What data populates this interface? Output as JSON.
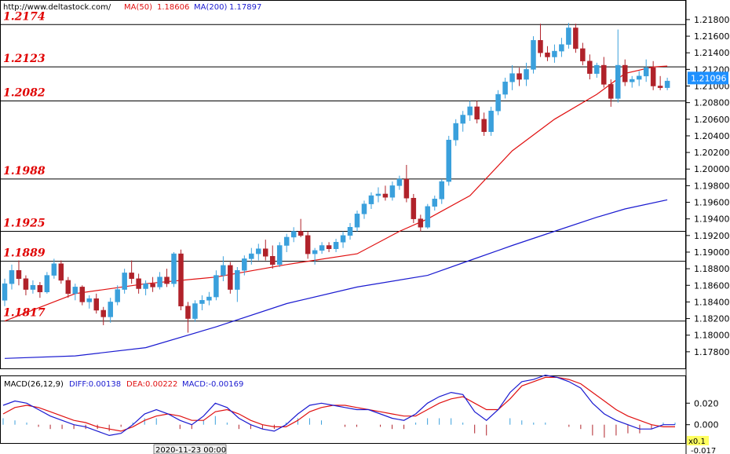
{
  "header": {
    "url": "http://www.deltastock.com/",
    "ma50_label": "MA(50)",
    "ma50_value": "1.18606",
    "ma200_label": "MA(200)",
    "ma200_value": "1.17897"
  },
  "macd_header": {
    "name": "MACD(26,12,9)",
    "diff": "DIFF:0.00138",
    "dea": "DEA:0.00222",
    "macd": "MACD:-0.00169"
  },
  "footer": {
    "date_label": "2020-11-23 00:00",
    "scale_label": "x0.1",
    "macd_min_label": "-0.017"
  },
  "colors": {
    "bull": "#3aa0dc",
    "bear": "#b0222a",
    "ma50": "#e01010",
    "ma200": "#1a1ad0",
    "levels": "#e00000",
    "price_tag_bg": "#1e90ff"
  },
  "chart_data": [
    {
      "type": "candlestick",
      "ylim": [
        1.176,
        1.2196
      ],
      "y_ticks": [
        "1.21800",
        "1.21600",
        "1.21400",
        "1.21200",
        "1.21000",
        "1.20800",
        "1.20600",
        "1.20400",
        "1.20200",
        "1.20000",
        "1.19800",
        "1.19600",
        "1.19400",
        "1.19200",
        "1.19000",
        "1.18800",
        "1.18600",
        "1.18400",
        "1.18200",
        "1.18000",
        "1.17800"
      ],
      "last_price": "1.21096",
      "levels": [
        "1.2174",
        "1.2123",
        "1.2082",
        "1.1988",
        "1.1925",
        "1.1889",
        "1.1817"
      ],
      "candles": [
        [
          1.1842,
          1.1868,
          1.1835,
          1.1862
        ],
        [
          1.1862,
          1.1885,
          1.1855,
          1.1878
        ],
        [
          1.1878,
          1.189,
          1.186,
          1.1868
        ],
        [
          1.1868,
          1.1872,
          1.1848,
          1.1855
        ],
        [
          1.1855,
          1.1866,
          1.185,
          1.186
        ],
        [
          1.186,
          1.1864,
          1.1845,
          1.1852
        ],
        [
          1.1852,
          1.1876,
          1.185,
          1.1872
        ],
        [
          1.1872,
          1.1892,
          1.1868,
          1.1886
        ],
        [
          1.1886,
          1.189,
          1.1862,
          1.1866
        ],
        [
          1.1866,
          1.187,
          1.1845,
          1.185
        ],
        [
          1.185,
          1.1862,
          1.1842,
          1.1858
        ],
        [
          1.1858,
          1.186,
          1.1836,
          1.184
        ],
        [
          1.184,
          1.1848,
          1.1832,
          1.1844
        ],
        [
          1.1844,
          1.185,
          1.1826,
          1.183
        ],
        [
          1.183,
          1.1834,
          1.1812,
          1.1822
        ],
        [
          1.1822,
          1.1845,
          1.1815,
          1.184
        ],
        [
          1.184,
          1.186,
          1.1836,
          1.1855
        ],
        [
          1.1855,
          1.188,
          1.185,
          1.1875
        ],
        [
          1.1875,
          1.189,
          1.1862,
          1.1868
        ],
        [
          1.1868,
          1.1874,
          1.185,
          1.1856
        ],
        [
          1.1856,
          1.1866,
          1.1848,
          1.1862
        ],
        [
          1.1862,
          1.187,
          1.1852,
          1.1858
        ],
        [
          1.1858,
          1.1876,
          1.1855,
          1.187
        ],
        [
          1.187,
          1.188,
          1.1858,
          1.1862
        ],
        [
          1.1862,
          1.19,
          1.1858,
          1.1898
        ],
        [
          1.1898,
          1.1903,
          1.183,
          1.1835
        ],
        [
          1.1835,
          1.184,
          1.1803,
          1.182
        ],
        [
          1.182,
          1.1842,
          1.1816,
          1.1838
        ],
        [
          1.1838,
          1.1848,
          1.183,
          1.1842
        ],
        [
          1.1842,
          1.1852,
          1.1836,
          1.1846
        ],
        [
          1.1846,
          1.1878,
          1.1842,
          1.1872
        ],
        [
          1.1872,
          1.1895,
          1.1865,
          1.1884
        ],
        [
          1.1884,
          1.1888,
          1.185,
          1.1855
        ],
        [
          1.1855,
          1.1882,
          1.184,
          1.1878
        ],
        [
          1.1878,
          1.1896,
          1.1872,
          1.1892
        ],
        [
          1.1892,
          1.1905,
          1.1885,
          1.1898
        ],
        [
          1.1898,
          1.191,
          1.189,
          1.1904
        ],
        [
          1.1904,
          1.1915,
          1.189,
          1.1895
        ],
        [
          1.1895,
          1.1908,
          1.188,
          1.1885
        ],
        [
          1.1885,
          1.1912,
          1.1882,
          1.1908
        ],
        [
          1.1908,
          1.1922,
          1.19,
          1.1918
        ],
        [
          1.1918,
          1.193,
          1.1912,
          1.1925
        ],
        [
          1.1925,
          1.194,
          1.1918,
          1.192
        ],
        [
          1.192,
          1.1925,
          1.1892,
          1.1898
        ],
        [
          1.1898,
          1.1905,
          1.1885,
          1.1902
        ],
        [
          1.1902,
          1.1912,
          1.1898,
          1.1908
        ],
        [
          1.1908,
          1.1912,
          1.19,
          1.1904
        ],
        [
          1.1904,
          1.1916,
          1.19,
          1.1912
        ],
        [
          1.1912,
          1.1925,
          1.1905,
          1.192
        ],
        [
          1.192,
          1.1935,
          1.1915,
          1.193
        ],
        [
          1.193,
          1.195,
          1.1925,
          1.1946
        ],
        [
          1.1946,
          1.1962,
          1.194,
          1.1958
        ],
        [
          1.1958,
          1.1972,
          1.1952,
          1.1968
        ],
        [
          1.1968,
          1.1978,
          1.196,
          1.197
        ],
        [
          1.197,
          1.198,
          1.1962,
          1.1966
        ],
        [
          1.1966,
          1.1985,
          1.1962,
          1.198
        ],
        [
          1.198,
          1.1992,
          1.1975,
          1.1988
        ],
        [
          1.1988,
          1.2005,
          1.196,
          1.1965
        ],
        [
          1.1965,
          1.197,
          1.1935,
          1.194
        ],
        [
          1.194,
          1.1945,
          1.1925,
          1.193
        ],
        [
          1.193,
          1.1958,
          1.1928,
          1.1955
        ],
        [
          1.1955,
          1.1968,
          1.195,
          1.1964
        ],
        [
          1.1964,
          1.1988,
          1.1958,
          1.1985
        ],
        [
          1.1985,
          1.204,
          1.198,
          1.2035
        ],
        [
          1.2035,
          1.206,
          1.2028,
          1.2055
        ],
        [
          1.2055,
          1.207,
          1.2045,
          1.2065
        ],
        [
          1.2065,
          1.2082,
          1.2058,
          1.2075
        ],
        [
          1.2075,
          1.2082,
          1.2055,
          1.206
        ],
        [
          1.206,
          1.2068,
          1.204,
          1.2045
        ],
        [
          1.2045,
          1.2075,
          1.204,
          1.207
        ],
        [
          1.207,
          1.2095,
          1.2065,
          1.209
        ],
        [
          1.209,
          1.211,
          1.2085,
          1.2105
        ],
        [
          1.2105,
          1.2125,
          1.2095,
          1.2115
        ],
        [
          1.2115,
          1.2122,
          1.21,
          1.2108
        ],
        [
          1.2108,
          1.2128,
          1.21,
          1.212
        ],
        [
          1.212,
          1.216,
          1.2115,
          1.2155
        ],
        [
          1.2155,
          1.2175,
          1.2135,
          1.214
        ],
        [
          1.214,
          1.2148,
          1.213,
          1.2135
        ],
        [
          1.2135,
          1.215,
          1.2128,
          1.2142
        ],
        [
          1.2142,
          1.2158,
          1.2135,
          1.215
        ],
        [
          1.215,
          1.2176,
          1.2145,
          1.217
        ],
        [
          1.217,
          1.2175,
          1.214,
          1.2145
        ],
        [
          1.2145,
          1.2152,
          1.2125,
          1.213
        ],
        [
          1.213,
          1.2138,
          1.2108,
          1.2115
        ],
        [
          1.2115,
          1.2128,
          1.211,
          1.2125
        ],
        [
          1.2125,
          1.2135,
          1.2098,
          1.2102
        ],
        [
          1.2102,
          1.2108,
          1.2075,
          1.2085
        ],
        [
          1.2085,
          1.2168,
          1.208,
          1.2125
        ],
        [
          1.2125,
          1.2132,
          1.21,
          1.2105
        ],
        [
          1.2105,
          1.2112,
          1.2098,
          1.2108
        ],
        [
          1.2108,
          1.2118,
          1.21,
          1.2112
        ],
        [
          1.2112,
          1.2132,
          1.2105,
          1.2122
        ],
        [
          1.2122,
          1.213,
          1.2095,
          1.21
        ],
        [
          1.21,
          1.2112,
          1.2095,
          1.2098
        ],
        [
          1.2098,
          1.211,
          1.2095,
          1.2106
        ]
      ],
      "series": [
        {
          "name": "MA(50)",
          "x": [
            0,
            10,
            20,
            30,
            40,
            50,
            56,
            60,
            66,
            72,
            78,
            84,
            88,
            92,
            94
          ],
          "values": [
            1.1817,
            1.185,
            1.1862,
            1.187,
            1.1885,
            1.1898,
            1.1925,
            1.194,
            1.1968,
            1.2022,
            1.206,
            1.209,
            1.2115,
            1.2123,
            1.2124
          ]
        },
        {
          "name": "MA(200)",
          "x": [
            0,
            10,
            20,
            30,
            40,
            50,
            60,
            66,
            72,
            78,
            84,
            88,
            94
          ],
          "values": [
            1.1772,
            1.1775,
            1.1785,
            1.181,
            1.1838,
            1.1858,
            1.1872,
            1.189,
            1.1908,
            1.1925,
            1.1942,
            1.1952,
            1.1963
          ]
        }
      ]
    },
    {
      "type": "line",
      "title": "MACD(26,12,9)",
      "ylim": [
        -0.017,
        0.045
      ],
      "y_ticks": [
        "0.020",
        "0.000"
      ],
      "diff": [
        0.018,
        0.022,
        0.02,
        0.014,
        0.008,
        0.004,
        0.0,
        -0.002,
        -0.006,
        -0.01,
        -0.008,
        0.0,
        0.01,
        0.014,
        0.01,
        0.004,
        0.0,
        0.008,
        0.02,
        0.016,
        0.006,
        0.0,
        -0.004,
        -0.006,
        0.0,
        0.01,
        0.018,
        0.02,
        0.018,
        0.016,
        0.014,
        0.014,
        0.01,
        0.006,
        0.004,
        0.01,
        0.02,
        0.026,
        0.03,
        0.028,
        0.012,
        0.004,
        0.014,
        0.03,
        0.04,
        0.042,
        0.046,
        0.044,
        0.04,
        0.034,
        0.02,
        0.01,
        0.004,
        0.0,
        -0.004,
        -0.004,
        0.0,
        0.0
      ],
      "dea": [
        0.01,
        0.016,
        0.018,
        0.016,
        0.012,
        0.008,
        0.004,
        0.002,
        -0.002,
        -0.004,
        -0.006,
        -0.002,
        0.004,
        0.008,
        0.01,
        0.008,
        0.004,
        0.004,
        0.012,
        0.014,
        0.01,
        0.004,
        0.0,
        -0.002,
        -0.002,
        0.004,
        0.012,
        0.016,
        0.018,
        0.018,
        0.016,
        0.014,
        0.012,
        0.01,
        0.008,
        0.008,
        0.014,
        0.02,
        0.024,
        0.026,
        0.02,
        0.014,
        0.014,
        0.024,
        0.036,
        0.04,
        0.044,
        0.044,
        0.042,
        0.038,
        0.03,
        0.022,
        0.014,
        0.008,
        0.004,
        0.0,
        -0.002,
        -0.002
      ],
      "hist": [
        0.006,
        0.004,
        0.002,
        -0.002,
        -0.004,
        -0.004,
        -0.004,
        -0.004,
        -0.004,
        -0.006,
        -0.002,
        0.002,
        0.006,
        0.006,
        0.0,
        -0.004,
        -0.004,
        0.004,
        0.008,
        0.002,
        -0.004,
        -0.004,
        -0.004,
        -0.004,
        0.002,
        0.006,
        0.006,
        0.004,
        0.0,
        -0.002,
        -0.002,
        0.0,
        -0.002,
        -0.004,
        -0.004,
        0.002,
        0.006,
        0.006,
        0.006,
        0.002,
        -0.008,
        -0.01,
        0.0,
        0.006,
        0.004,
        0.002,
        0.002,
        0.0,
        -0.002,
        -0.004,
        -0.01,
        -0.012,
        -0.01,
        -0.008,
        -0.008,
        -0.004,
        0.002,
        0.002
      ]
    }
  ]
}
